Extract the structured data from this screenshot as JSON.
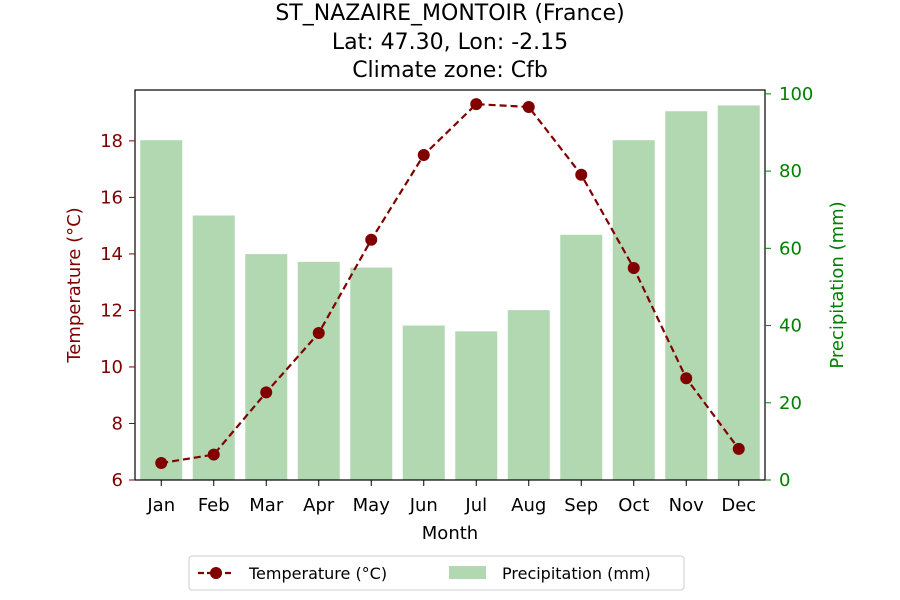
{
  "chart_data": {
    "type": "bar+line",
    "title_lines": [
      "ST_NAZAIRE_MONTOIR (France)",
      "Lat: 47.30, Lon: -2.15",
      "Climate zone: Cfb"
    ],
    "xlabel": "Month",
    "categories": [
      "Jan",
      "Feb",
      "Mar",
      "Apr",
      "May",
      "Jun",
      "Jul",
      "Aug",
      "Sep",
      "Oct",
      "Nov",
      "Dec"
    ],
    "temperature": {
      "name": "Temperature (°C)",
      "axis_label": "Temperature (°C)",
      "values": [
        6.6,
        6.9,
        9.1,
        11.2,
        14.5,
        17.5,
        19.3,
        19.2,
        16.8,
        13.5,
        9.6,
        7.1
      ],
      "ylim": [
        6,
        19.8
      ],
      "ticks": [
        6,
        8,
        10,
        12,
        14,
        16,
        18
      ],
      "color": "#800000",
      "style": "dashed line with circle markers"
    },
    "precipitation": {
      "name": "Precipitation (mm)",
      "axis_label": "Precipitation (mm)",
      "values": [
        88,
        68.5,
        58.5,
        56.5,
        55,
        40,
        38.5,
        44,
        63.5,
        88,
        95.5,
        97
      ],
      "ylim": [
        0,
        101
      ],
      "ticks": [
        0,
        20,
        40,
        60,
        80,
        100
      ],
      "color": "#008000",
      "bar_color": "#b2d8b2"
    },
    "grid": false,
    "legend_position": "bottom-center"
  }
}
